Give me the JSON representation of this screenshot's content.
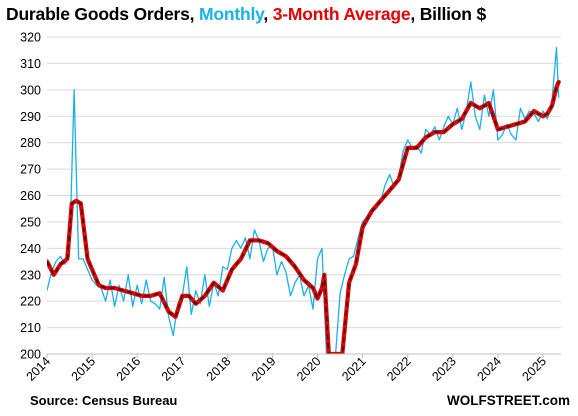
{
  "header": {
    "part1": "Durable Goods Orders, ",
    "part2": "Monthly",
    "part3": ", ",
    "part4": "3-Month Average",
    "part5": ", Billion $"
  },
  "footer": {
    "source": "Source: Census Bureau",
    "brand": "WOLFSTREET.com"
  },
  "chart_data": {
    "type": "line",
    "title": "Durable Goods Orders, Monthly, 3-Month Average, Billion $",
    "xlabel": "",
    "ylabel": "",
    "xlim": [
      2014,
      2025.4
    ],
    "ylim": [
      200,
      320
    ],
    "yticks": [
      200,
      210,
      220,
      230,
      240,
      250,
      260,
      270,
      280,
      290,
      300,
      310,
      320
    ],
    "xticks": [
      "2014",
      "2015",
      "2016",
      "2017",
      "2018",
      "2019",
      "2020",
      "2021",
      "2022",
      "2023",
      "2024",
      "2025"
    ],
    "grid": true,
    "colors": {
      "monthly": "#1ab0e8",
      "average": "#e30000",
      "average_overlay": "#222222"
    },
    "series": [
      {
        "name": "Monthly",
        "x": [
          2014.0,
          2014.1,
          2014.2,
          2014.3,
          2014.4,
          2014.5,
          2014.6,
          2014.7,
          2014.8,
          2014.9,
          2015.0,
          2015.1,
          2015.2,
          2015.3,
          2015.4,
          2015.5,
          2015.6,
          2015.7,
          2015.8,
          2015.9,
          2016.0,
          2016.1,
          2016.2,
          2016.3,
          2016.4,
          2016.5,
          2016.6,
          2016.7,
          2016.8,
          2016.9,
          2017.0,
          2017.1,
          2017.2,
          2017.3,
          2017.4,
          2017.5,
          2017.6,
          2017.7,
          2017.8,
          2017.9,
          2018.0,
          2018.1,
          2018.2,
          2018.3,
          2018.4,
          2018.5,
          2018.6,
          2018.7,
          2018.8,
          2018.9,
          2019.0,
          2019.1,
          2019.2,
          2019.3,
          2019.4,
          2019.5,
          2019.6,
          2019.7,
          2019.8,
          2019.9,
          2020.0,
          2020.1,
          2020.2,
          2020.3,
          2020.4,
          2020.5,
          2020.6,
          2020.7,
          2020.8,
          2020.9,
          2021.0,
          2021.1,
          2021.2,
          2021.3,
          2021.4,
          2021.5,
          2021.6,
          2021.7,
          2021.8,
          2021.9,
          2022.0,
          2022.1,
          2022.2,
          2022.3,
          2022.4,
          2022.5,
          2022.6,
          2022.7,
          2022.8,
          2022.9,
          2023.0,
          2023.1,
          2023.2,
          2023.3,
          2023.4,
          2023.5,
          2023.6,
          2023.7,
          2023.8,
          2023.9,
          2024.0,
          2024.1,
          2024.2,
          2024.3,
          2024.4,
          2024.5,
          2024.6,
          2024.7,
          2024.8,
          2024.9,
          2025.0,
          2025.1,
          2025.2,
          2025.3,
          2025.35
        ],
        "values": [
          224,
          231,
          235,
          237,
          234,
          237,
          300,
          236,
          236,
          232,
          228,
          226,
          225,
          220,
          228,
          218,
          226,
          220,
          230,
          218,
          226,
          219,
          228,
          220,
          219,
          217,
          229,
          214,
          207,
          219,
          222,
          233,
          215,
          224,
          219,
          230,
          218,
          227,
          222,
          233,
          232,
          240,
          243,
          240,
          244,
          236,
          247,
          243,
          235,
          240,
          241,
          230,
          235,
          231,
          222,
          227,
          230,
          222,
          226,
          217,
          236,
          240,
          200,
          200,
          200,
          223,
          230,
          236,
          237,
          244,
          250,
          252,
          254,
          255,
          258,
          264,
          268,
          263,
          267,
          277,
          281,
          278,
          279,
          276,
          285,
          283,
          286,
          281,
          286,
          290,
          287,
          293,
          285,
          292,
          303,
          290,
          285,
          298,
          290,
          300,
          281,
          283,
          287,
          283,
          281,
          293,
          289,
          292,
          291,
          288,
          292,
          289,
          296,
          316,
          297
        ]
      },
      {
        "name": "3-Month Average",
        "x": [
          2014.0,
          2014.15,
          2014.3,
          2014.45,
          2014.55,
          2014.65,
          2014.75,
          2014.9,
          2015.0,
          2015.15,
          2015.3,
          2015.5,
          2015.7,
          2015.9,
          2016.1,
          2016.3,
          2016.5,
          2016.7,
          2016.85,
          2017.0,
          2017.15,
          2017.3,
          2017.5,
          2017.7,
          2017.9,
          2018.1,
          2018.3,
          2018.5,
          2018.7,
          2018.9,
          2019.1,
          2019.3,
          2019.5,
          2019.7,
          2019.9,
          2020.0,
          2020.1,
          2020.15,
          2020.25,
          2020.35,
          2020.45,
          2020.55,
          2020.7,
          2020.85,
          2021.0,
          2021.2,
          2021.4,
          2021.6,
          2021.8,
          2022.0,
          2022.2,
          2022.4,
          2022.6,
          2022.8,
          2023.0,
          2023.2,
          2023.4,
          2023.6,
          2023.8,
          2024.0,
          2024.2,
          2024.4,
          2024.6,
          2024.8,
          2025.0,
          2025.1,
          2025.2,
          2025.3,
          2025.35
        ],
        "values": [
          235,
          230,
          234,
          236,
          257,
          258,
          257,
          236,
          232,
          226,
          225,
          225,
          224,
          223,
          222,
          222,
          223,
          216,
          214,
          222,
          222,
          219,
          222,
          227,
          224,
          232,
          236,
          243,
          243,
          242,
          239,
          237,
          233,
          228,
          225,
          221,
          225,
          230,
          200,
          200,
          200,
          200,
          227,
          234,
          248,
          254,
          258,
          262,
          266,
          278,
          278,
          282,
          284,
          284,
          287,
          289,
          295,
          293,
          295,
          285,
          286,
          287,
          288,
          292,
          290,
          291,
          294,
          301,
          303
        ]
      }
    ]
  }
}
